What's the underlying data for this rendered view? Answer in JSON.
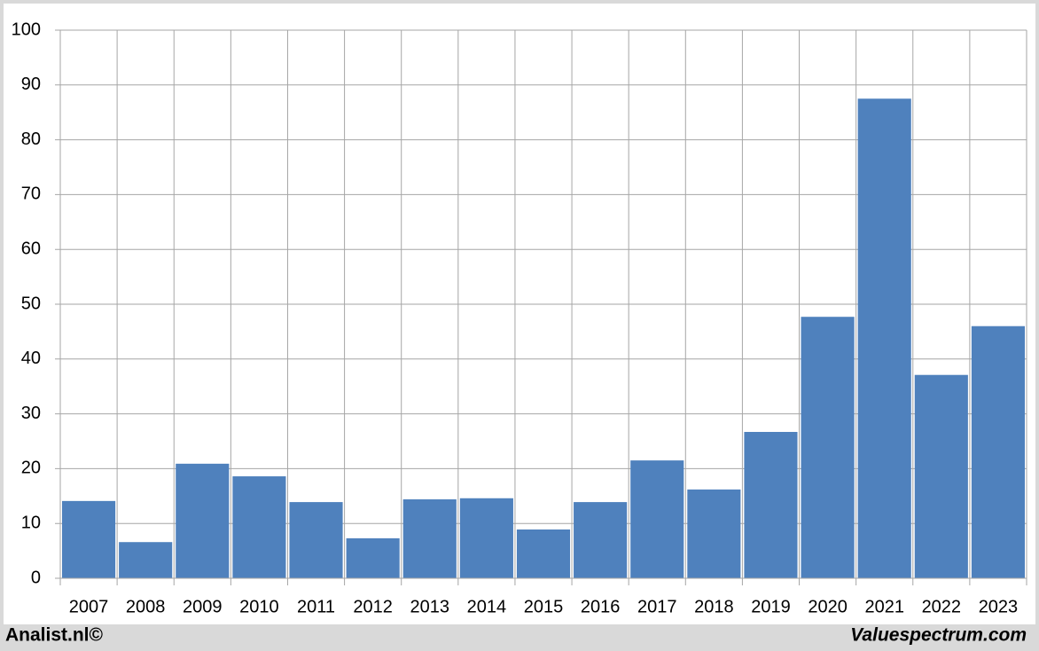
{
  "chart_data": {
    "type": "bar",
    "categories": [
      "2007",
      "2008",
      "2009",
      "2010",
      "2011",
      "2012",
      "2013",
      "2014",
      "2015",
      "2016",
      "2017",
      "2018",
      "2019",
      "2020",
      "2021",
      "2022",
      "2023"
    ],
    "values": [
      14.1,
      6.6,
      20.9,
      18.6,
      13.9,
      7.3,
      14.4,
      14.6,
      8.9,
      13.9,
      21.5,
      16.2,
      26.7,
      47.7,
      87.5,
      37.1,
      46.0
    ],
    "color": "#4f81bd",
    "ylim": [
      0,
      100
    ],
    "yticks": [
      0,
      10,
      20,
      30,
      40,
      50,
      60,
      70,
      80,
      90,
      100
    ],
    "grid": true,
    "footer_left": "Analist.nl©",
    "footer_right": "Valuespectrum.com"
  }
}
